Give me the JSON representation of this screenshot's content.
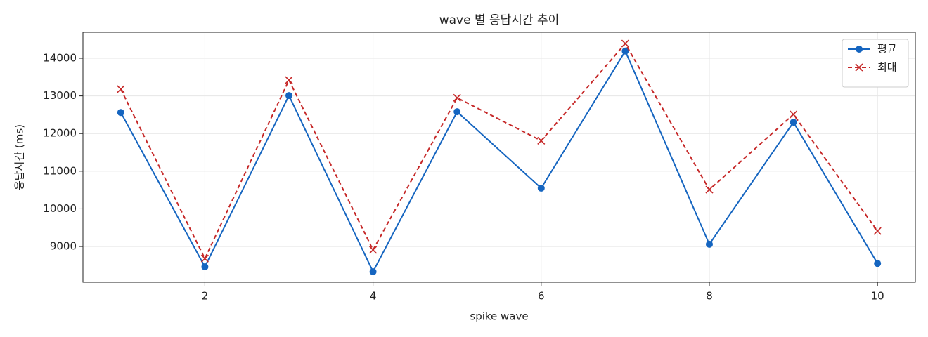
{
  "chart_data": {
    "type": "line",
    "title": "wave 별 응답시간 추이",
    "xlabel": "spike wave",
    "ylabel": "응답시간 (ms)",
    "x": [
      1,
      2,
      3,
      4,
      5,
      6,
      7,
      8,
      9,
      10
    ],
    "series": [
      {
        "name": "평균",
        "color": "#1565c0",
        "marker": "o",
        "linestyle": "solid",
        "values": [
          12560,
          8460,
          13010,
          8330,
          12580,
          10550,
          14190,
          9060,
          12300,
          8550
        ]
      },
      {
        "name": "최대",
        "color": "#c62828",
        "marker": "x",
        "linestyle": "dashed",
        "values": [
          13180,
          8680,
          13420,
          8910,
          12950,
          11810,
          14390,
          10510,
          12510,
          9410
        ]
      }
    ],
    "xlim": [
      0.55,
      10.45
    ],
    "xticks": [
      2,
      4,
      6,
      8,
      10
    ],
    "ylim": [
      8050,
      14690
    ],
    "yticks": [
      9000,
      10000,
      11000,
      12000,
      13000,
      14000
    ],
    "grid": true,
    "legend": "upper right"
  }
}
